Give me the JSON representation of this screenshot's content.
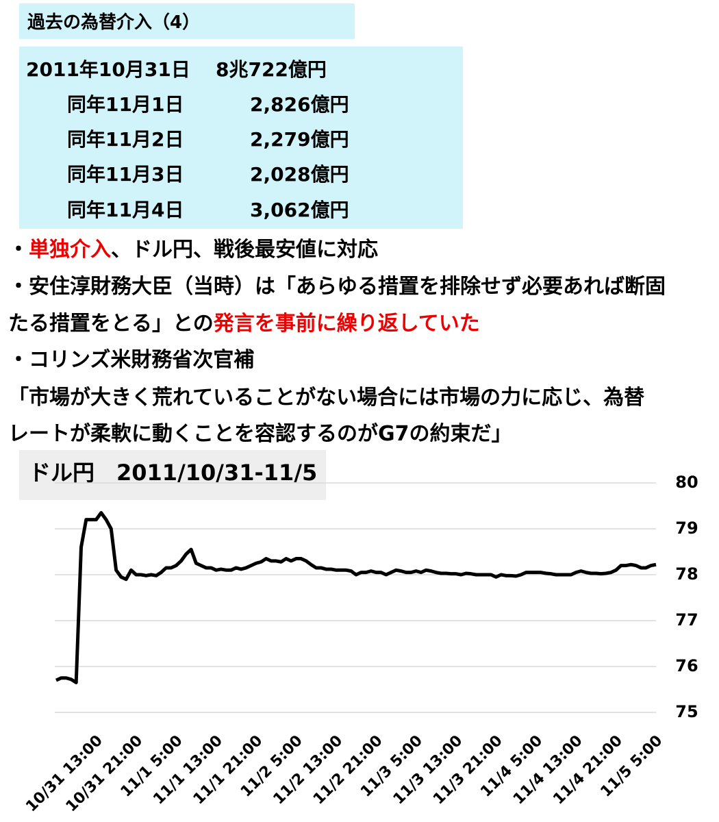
{
  "header": {
    "title": "過去の為替介入（4）"
  },
  "table": {
    "rows": [
      [
        "2011年10月31日",
        "8兆722億円"
      ],
      [
        "同年11月1日",
        "2,826億円"
      ],
      [
        "同年11月2日",
        "2,279億円"
      ],
      [
        "同年11月3日",
        "2,028億円"
      ],
      [
        "同年11月4日",
        "3,062億円"
      ]
    ]
  },
  "notes": {
    "highlight_color": "#ee0000",
    "lines": [
      [
        {
          "text": "・"
        },
        {
          "text": "単独介入",
          "highlight": true
        },
        {
          "text": "、ドル円、戦後最安値に対応"
        }
      ],
      [
        {
          "text": "・安住淳財務大臣（当時）は「あらゆる措置を排除せず必要あれば断固"
        }
      ],
      [
        {
          "text": "たる措置をとる」との"
        },
        {
          "text": "発言を事前に繰り返していた",
          "highlight": true
        }
      ],
      [
        {
          "text": "・コリンズ米財務省次官補"
        }
      ],
      [
        {
          "text": "「市場が大きく荒れていることがない場合には市場の力に応じ、為替"
        }
      ],
      [
        {
          "text": "レートが柔軟に動くことを容認するのがG7の約束だ」"
        }
      ]
    ]
  },
  "chart_data": {
    "type": "line",
    "title": "ドル円　2011/10/31-11/5",
    "color": "#000000",
    "grid": true,
    "categories": [
      null,
      null,
      null,
      null,
      null,
      null,
      null,
      null,
      "10/31 13:00",
      null,
      null,
      null,
      null,
      null,
      null,
      null,
      "10/31 21:00",
      null,
      null,
      null,
      null,
      null,
      null,
      null,
      "11/1 5:00",
      null,
      null,
      null,
      null,
      null,
      null,
      null,
      "11/1 13:00",
      null,
      null,
      null,
      null,
      null,
      null,
      null,
      "11/1 21:00",
      null,
      null,
      null,
      null,
      null,
      null,
      null,
      "11/2 5:00",
      null,
      null,
      null,
      null,
      null,
      null,
      null,
      "11/2 13:00",
      null,
      null,
      null,
      null,
      null,
      null,
      null,
      "11/2 21:00",
      null,
      null,
      null,
      null,
      null,
      null,
      null,
      "11/3 5:00",
      null,
      null,
      null,
      null,
      null,
      null,
      null,
      "11/3 13:00",
      null,
      null,
      null,
      null,
      null,
      null,
      null,
      "11/3 21:00",
      null,
      null,
      null,
      null,
      null,
      null,
      null,
      "11/4 5:00",
      null,
      null,
      null,
      null,
      null,
      null,
      null,
      "11/4 13:00",
      null,
      null,
      null,
      null,
      null,
      null,
      null,
      "11/4 21:00",
      null,
      null,
      null,
      null,
      null,
      null,
      null,
      "11/5 5:00"
    ],
    "values": [
      75.7,
      75.75,
      75.75,
      75.72,
      75.65,
      78.6,
      79.2,
      79.2,
      79.2,
      79.35,
      79.2,
      79.0,
      78.1,
      77.95,
      77.9,
      78.1,
      78.0,
      78.0,
      77.98,
      78.0,
      77.98,
      78.05,
      78.15,
      78.15,
      78.2,
      78.3,
      78.45,
      78.55,
      78.25,
      78.2,
      78.15,
      78.15,
      78.1,
      78.12,
      78.1,
      78.1,
      78.15,
      78.12,
      78.15,
      78.2,
      78.25,
      78.28,
      78.35,
      78.3,
      78.3,
      78.28,
      78.35,
      78.3,
      78.35,
      78.35,
      78.3,
      78.22,
      78.15,
      78.15,
      78.12,
      78.12,
      78.1,
      78.1,
      78.1,
      78.08,
      78.0,
      78.05,
      78.05,
      78.08,
      78.05,
      78.05,
      78.0,
      78.05,
      78.1,
      78.08,
      78.05,
      78.05,
      78.08,
      78.05,
      78.1,
      78.08,
      78.05,
      78.03,
      78.03,
      78.02,
      78.02,
      78.0,
      78.03,
      78.02,
      78.0,
      78.0,
      78.0,
      78.0,
      77.95,
      78.0,
      77.98,
      77.98,
      77.97,
      78.0,
      78.05,
      78.05,
      78.05,
      78.05,
      78.03,
      78.02,
      78.0,
      78.0,
      78.0,
      78.0,
      78.05,
      78.08,
      78.05,
      78.03,
      78.03,
      78.02,
      78.03,
      78.05,
      78.1,
      78.2,
      78.2,
      78.22,
      78.2,
      78.15,
      78.15,
      78.2,
      78.22
    ],
    "ylim": [
      75,
      80
    ],
    "yticks": [
      75,
      76,
      77,
      78,
      79,
      80
    ]
  }
}
